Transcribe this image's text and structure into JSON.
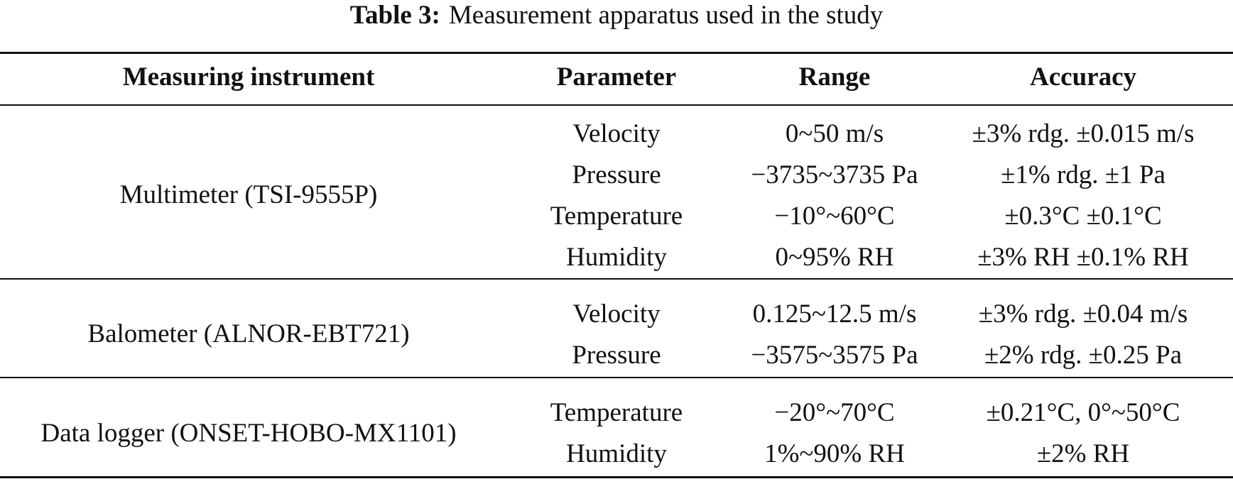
{
  "caption": {
    "label": "Table 3:",
    "text": "Measurement apparatus used in the study"
  },
  "table": {
    "headers": {
      "instrument": "Measuring instrument",
      "parameter": "Parameter",
      "range": "Range",
      "accuracy": "Accuracy"
    },
    "groups": [
      {
        "instrument": "Multimeter (TSI-9555P)",
        "rows": [
          {
            "parameter": "Velocity",
            "range": "0~50 m/s",
            "accuracy": "±3% rdg. ±0.015 m/s"
          },
          {
            "parameter": "Pressure",
            "range": "−3735~3735 Pa",
            "accuracy": "±1% rdg. ±1 Pa"
          },
          {
            "parameter": "Temperature",
            "range": "−10°~60°C",
            "accuracy": "±0.3°C ±0.1°C"
          },
          {
            "parameter": "Humidity",
            "range": "0~95% RH",
            "accuracy": "±3% RH ±0.1% RH"
          }
        ]
      },
      {
        "instrument": "Balometer (ALNOR-EBT721)",
        "rows": [
          {
            "parameter": "Velocity",
            "range": "0.125~12.5 m/s",
            "accuracy": "±3% rdg. ±0.04 m/s"
          },
          {
            "parameter": "Pressure",
            "range": "−3575~3575 Pa",
            "accuracy": "±2% rdg. ±0.25 Pa"
          }
        ]
      },
      {
        "instrument": "Data logger (ONSET-HOBO-MX1101)",
        "rows": [
          {
            "parameter": "Temperature",
            "range": "−20°~70°C",
            "accuracy": "±0.21°C, 0°~50°C"
          },
          {
            "parameter": "Humidity",
            "range": "1%~90% RH",
            "accuracy": "±2% RH"
          }
        ]
      }
    ]
  }
}
